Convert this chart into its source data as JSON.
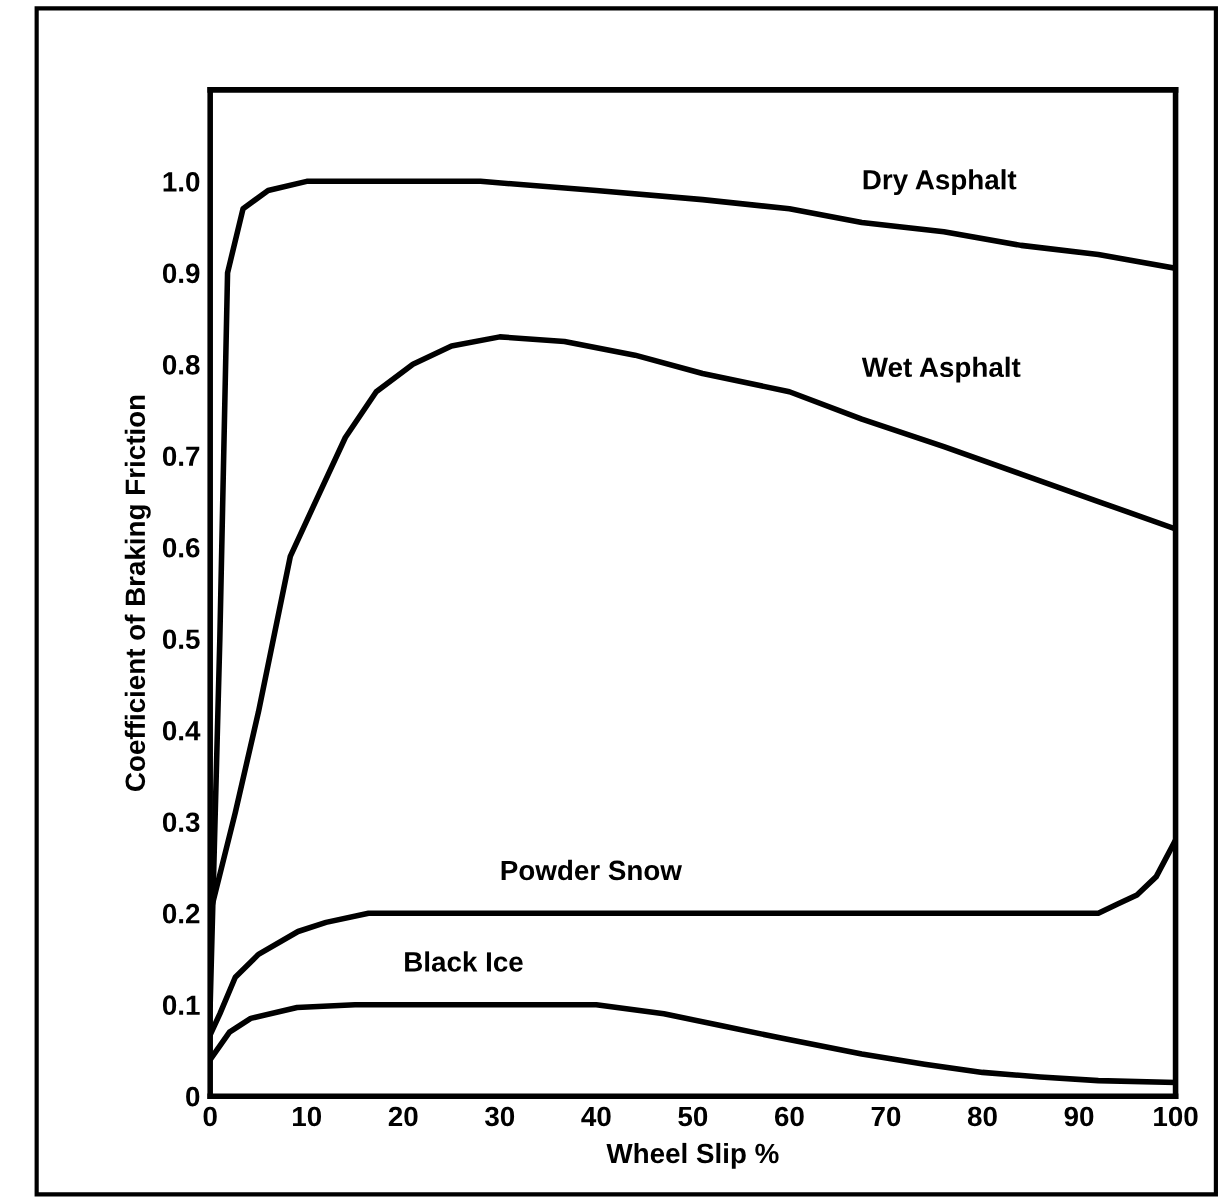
{
  "chart_data": {
    "type": "line",
    "xlabel": "Wheel Slip %",
    "ylabel": "Coefficient of Braking Friction",
    "xlim": [
      0,
      100
    ],
    "ylim": [
      0,
      1.1
    ],
    "xticks": [
      0,
      10,
      20,
      30,
      40,
      50,
      60,
      70,
      80,
      90,
      100
    ],
    "yticks": [
      0,
      0.1,
      0.2,
      0.3,
      0.4,
      0.5,
      0.6,
      0.7,
      0.8,
      0.9,
      {
        "value": 1,
        "label": "1.0"
      }
    ],
    "grid": false,
    "legend": false,
    "marker": "none",
    "line_style": "solid",
    "series": [
      {
        "name": "Dry Asphalt",
        "color": "#000000",
        "x": [
          0,
          1,
          1.8,
          3.4,
          6,
          10,
          20,
          28,
          40,
          51,
          60,
          67.5,
          76,
          84,
          92,
          100
        ],
        "values": [
          0.1,
          0.5,
          0.9,
          0.97,
          0.99,
          1.0,
          1.0,
          1.0,
          0.99,
          0.98,
          0.97,
          0.955,
          0.945,
          0.93,
          0.92,
          0.905
        ]
      },
      {
        "name": "Wet Asphalt",
        "color": "#000000",
        "x": [
          0,
          2.6,
          5,
          8.3,
          10.7,
          14,
          17.2,
          21,
          25,
          30,
          36.7,
          44,
          51,
          60,
          67.5,
          76,
          84,
          92,
          100
        ],
        "values": [
          0.2,
          0.31,
          0.42,
          0.59,
          0.645,
          0.72,
          0.77,
          0.8,
          0.82,
          0.83,
          0.825,
          0.81,
          0.79,
          0.77,
          0.74,
          0.71,
          0.68,
          0.65,
          0.62
        ]
      },
      {
        "name": "Powder Snow",
        "color": "#000000",
        "x": [
          0,
          1,
          2.6,
          5,
          9.1,
          12,
          16.4,
          20,
          30,
          40,
          50,
          60,
          70,
          80,
          90,
          92,
          94,
          96,
          98,
          100
        ],
        "values": [
          0.067,
          0.09,
          0.13,
          0.155,
          0.18,
          0.19,
          0.2,
          0.2,
          0.2,
          0.2,
          0.2,
          0.2,
          0.2,
          0.2,
          0.2,
          0.2,
          0.21,
          0.22,
          0.24,
          0.28
        ]
      },
      {
        "name": "Black Ice",
        "color": "#000000",
        "x": [
          0,
          2,
          4.2,
          9,
          15,
          20,
          30,
          40,
          47,
          53,
          59.4,
          67.5,
          74,
          80,
          86,
          92,
          100
        ],
        "values": [
          0.04,
          0.07,
          0.085,
          0.097,
          0.1,
          0.1,
          0.1,
          0.1,
          0.09,
          0.077,
          0.063,
          0.046,
          0.035,
          0.026,
          0.021,
          0.017,
          0.015
        ]
      }
    ]
  }
}
